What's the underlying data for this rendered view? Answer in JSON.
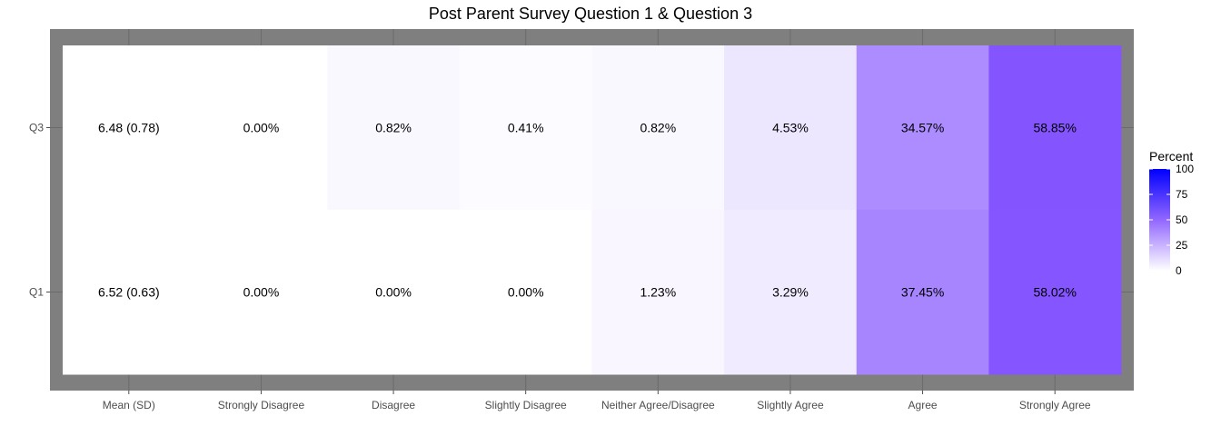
{
  "chart_data": {
    "type": "heatmap",
    "title": "Post Parent Survey Question 1 & Question 3",
    "xlabel": "",
    "ylabel": "",
    "x_categories": [
      "Mean (SD)",
      "Strongly Disagree",
      "Disagree",
      "Slightly Disagree",
      "Neither Agree/Disagree",
      "Slightly Agree",
      "Agree",
      "Strongly Agree"
    ],
    "y_categories": [
      "Q3",
      "Q1"
    ],
    "values": [
      [
        null,
        0.0,
        0.82,
        0.41,
        0.82,
        4.53,
        34.57,
        58.85
      ],
      [
        null,
        0.0,
        0.0,
        0.0,
        1.23,
        3.29,
        37.45,
        58.02
      ]
    ],
    "labels": [
      [
        "6.48 (0.78)",
        "0.00%",
        "0.82%",
        "0.41%",
        "0.82%",
        "4.53%",
        "34.57%",
        "58.85%"
      ],
      [
        "6.52 (0.63)",
        "0.00%",
        "0.00%",
        "0.00%",
        "1.23%",
        "3.29%",
        "37.45%",
        "58.02%"
      ]
    ],
    "legend": {
      "title": "Percent",
      "ticks": [
        0,
        25,
        50,
        75,
        100
      ],
      "low_color": "#ffffff",
      "high_color": "#0000ff"
    },
    "background_color": "#7f7f7f",
    "grid": true
  }
}
